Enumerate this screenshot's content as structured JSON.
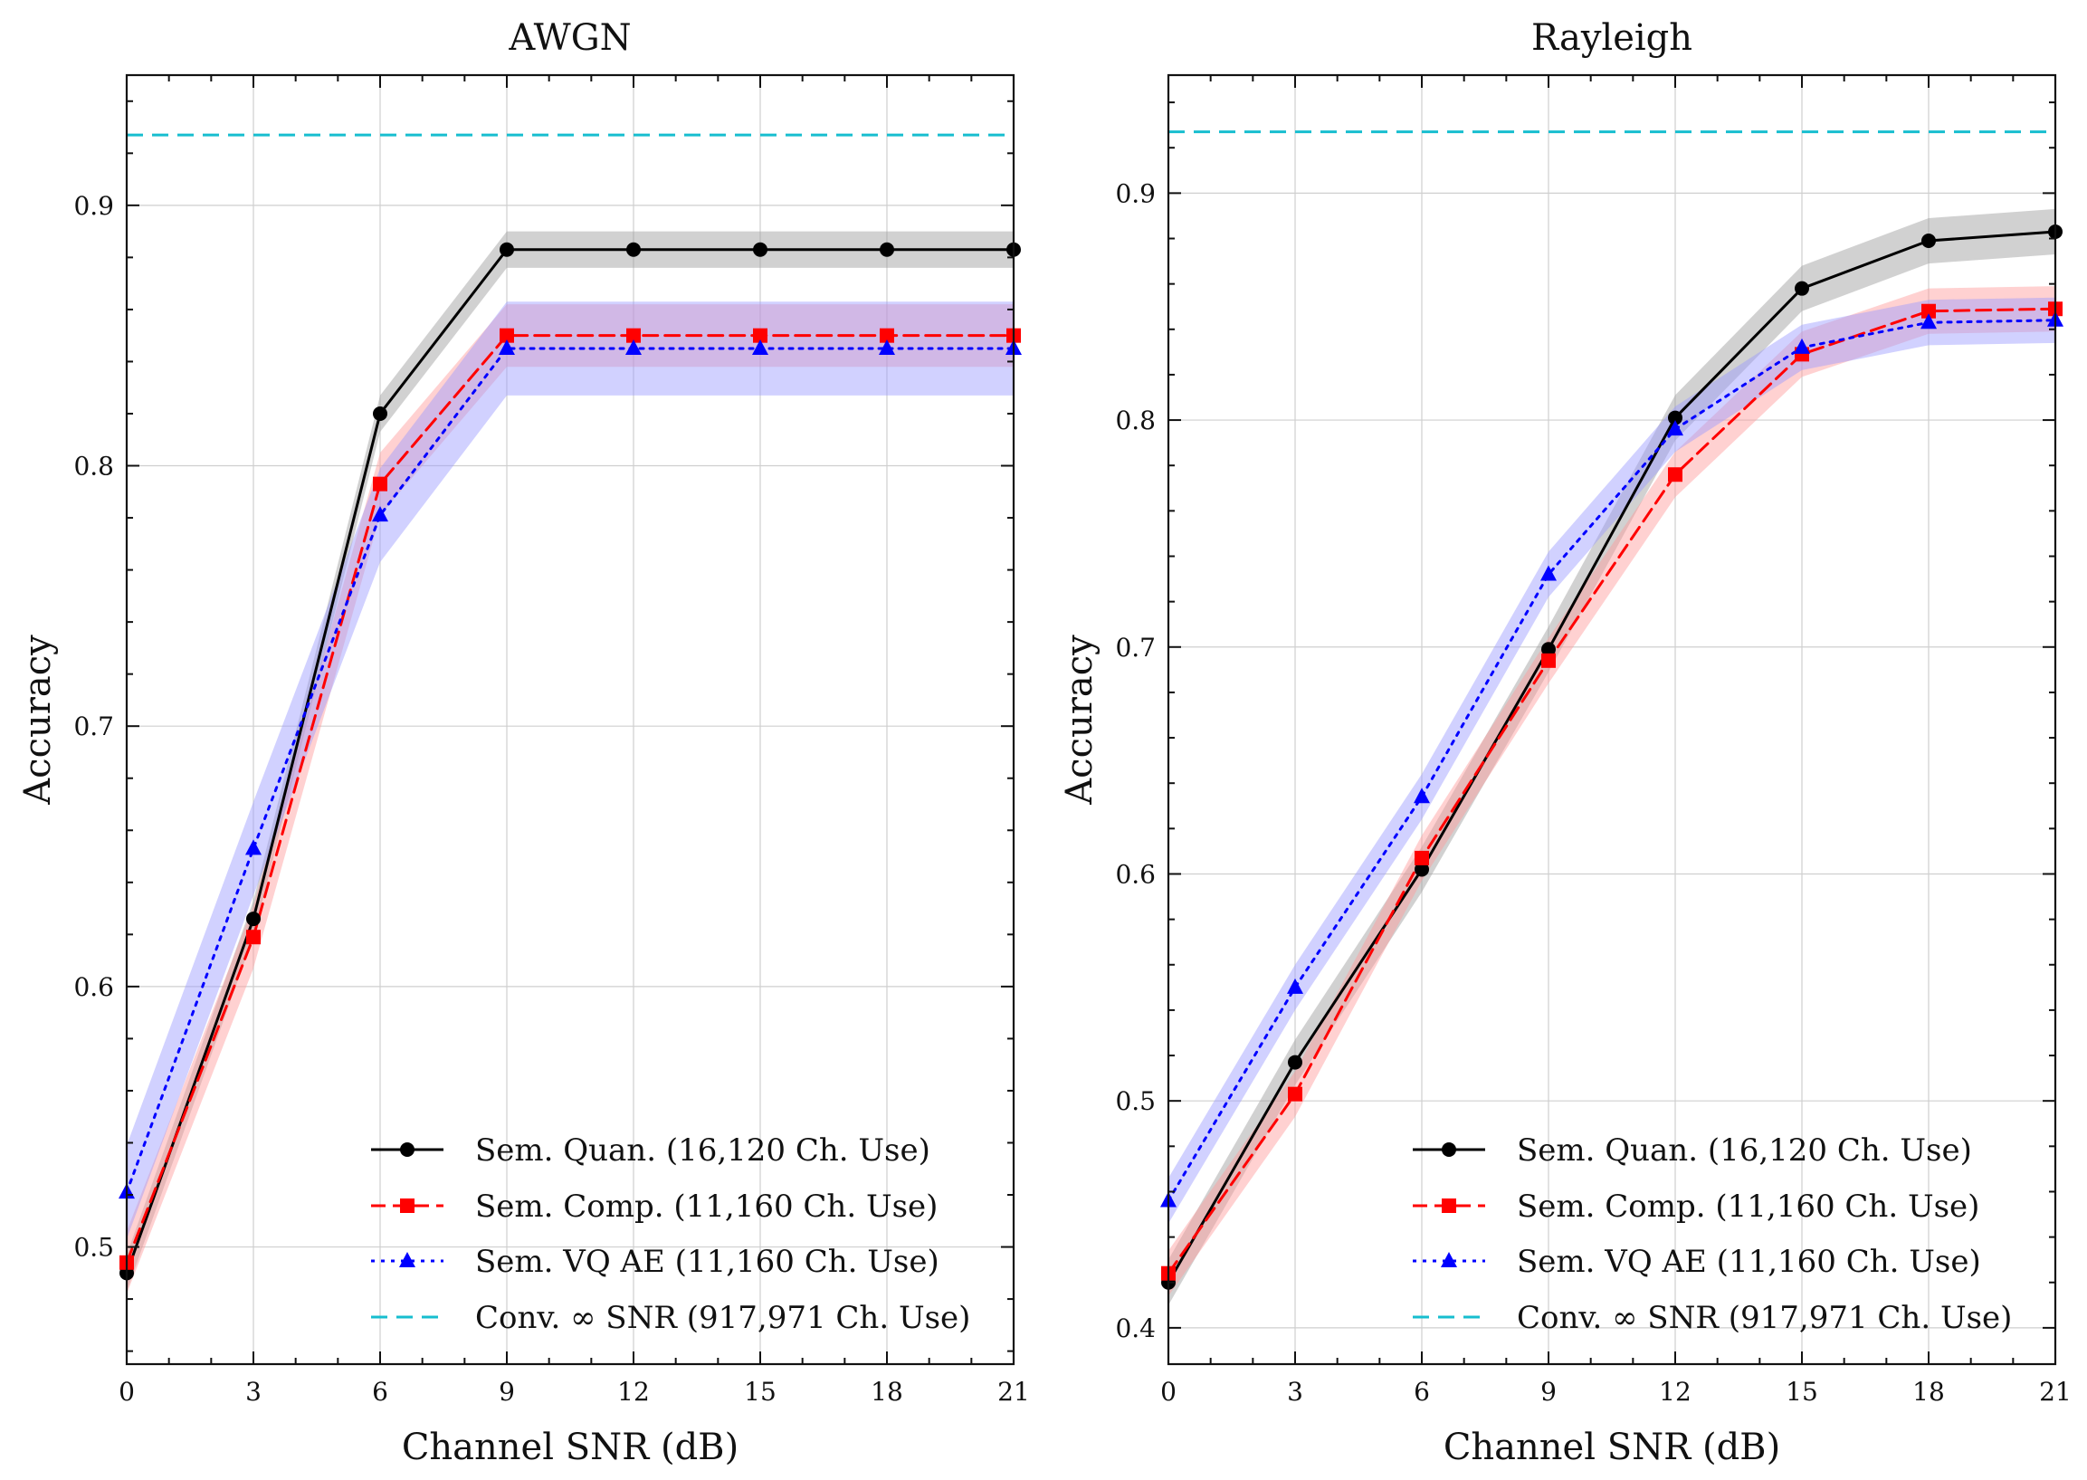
{
  "chart_data": [
    {
      "type": "line",
      "title": "AWGN",
      "xlabel": "Channel SNR (dB)",
      "ylabel": "Accuracy",
      "xlim": [
        0,
        21
      ],
      "ylim": [
        0.455,
        0.95
      ],
      "xticks": [
        0,
        3,
        6,
        9,
        12,
        15,
        18,
        21
      ],
      "xtick_labels": [
        "0",
        "3",
        "6",
        "9",
        "12",
        "15",
        "18",
        "21"
      ],
      "yticks": [
        0.5,
        0.6,
        0.7,
        0.8,
        0.9
      ],
      "ytick_labels": [
        "0.5",
        "0.6",
        "0.7",
        "0.8",
        "0.9"
      ],
      "grid": true,
      "legend_position": "bottom-right",
      "x": [
        0,
        3,
        6,
        9,
        12,
        15,
        18,
        21
      ],
      "series": [
        {
          "name": "Sem. Quan. (16,120 Ch. Use)",
          "color": "#000000",
          "marker": "circle",
          "dash": "solid",
          "values": [
            0.49,
            0.626,
            0.82,
            0.883,
            0.883,
            0.883,
            0.883,
            0.883
          ],
          "band": 0.007,
          "band_color": "#9a9a9a"
        },
        {
          "name": "Sem. Comp. (11,160 Ch. Use)",
          "color": "#ff0000",
          "marker": "square",
          "dash": "dashed",
          "values": [
            0.494,
            0.619,
            0.793,
            0.85,
            0.85,
            0.85,
            0.85,
            0.85
          ],
          "band": 0.012,
          "band_color": "#ff9a9a"
        },
        {
          "name": "Sem. VQ AE (11,160 Ch. Use)",
          "color": "#0000ff",
          "marker": "triangle",
          "dash": "dotted",
          "values": [
            0.521,
            0.653,
            0.781,
            0.845,
            0.845,
            0.845,
            0.845,
            0.845
          ],
          "band": 0.018,
          "band_color": "#9a9aff"
        },
        {
          "name": "Conv. ∞ SNR (917,971 Ch. Use)",
          "color": "#17becf",
          "marker": "none",
          "dash": "longdash",
          "constant": 0.927
        }
      ]
    },
    {
      "type": "line",
      "title": "Rayleigh",
      "xlabel": "Channel SNR (dB)",
      "ylabel": "Accuracy",
      "xlim": [
        0,
        21
      ],
      "ylim": [
        0.384,
        0.952
      ],
      "xticks": [
        0,
        3,
        6,
        9,
        12,
        15,
        18,
        21
      ],
      "xtick_labels": [
        "0",
        "3",
        "6",
        "9",
        "12",
        "15",
        "18",
        "21"
      ],
      "yticks": [
        0.4,
        0.5,
        0.6,
        0.7,
        0.8,
        0.9
      ],
      "ytick_labels": [
        "0.4",
        "0.5",
        "0.6",
        "0.7",
        "0.8",
        "0.9"
      ],
      "grid": true,
      "legend_position": "bottom-right",
      "x": [
        0,
        3,
        6,
        9,
        12,
        15,
        18,
        21
      ],
      "series": [
        {
          "name": "Sem. Quan. (16,120 Ch. Use)",
          "color": "#000000",
          "marker": "circle",
          "dash": "solid",
          "values": [
            0.42,
            0.517,
            0.602,
            0.699,
            0.801,
            0.858,
            0.879,
            0.883
          ],
          "band": 0.01,
          "band_color": "#9a9a9a"
        },
        {
          "name": "Sem. Comp. (11,160 Ch. Use)",
          "color": "#ff0000",
          "marker": "square",
          "dash": "dashed",
          "values": [
            0.424,
            0.503,
            0.607,
            0.694,
            0.776,
            0.829,
            0.848,
            0.849
          ],
          "band": 0.01,
          "band_color": "#ff9a9a"
        },
        {
          "name": "Sem. VQ AE (11,160 Ch. Use)",
          "color": "#0000ff",
          "marker": "triangle",
          "dash": "dotted",
          "values": [
            0.456,
            0.55,
            0.634,
            0.732,
            0.796,
            0.832,
            0.843,
            0.844
          ],
          "band": 0.01,
          "band_color": "#9a9aff"
        },
        {
          "name": "Conv. ∞ SNR (917,971 Ch. Use)",
          "color": "#17becf",
          "marker": "none",
          "dash": "longdash",
          "constant": 0.927
        }
      ]
    }
  ]
}
